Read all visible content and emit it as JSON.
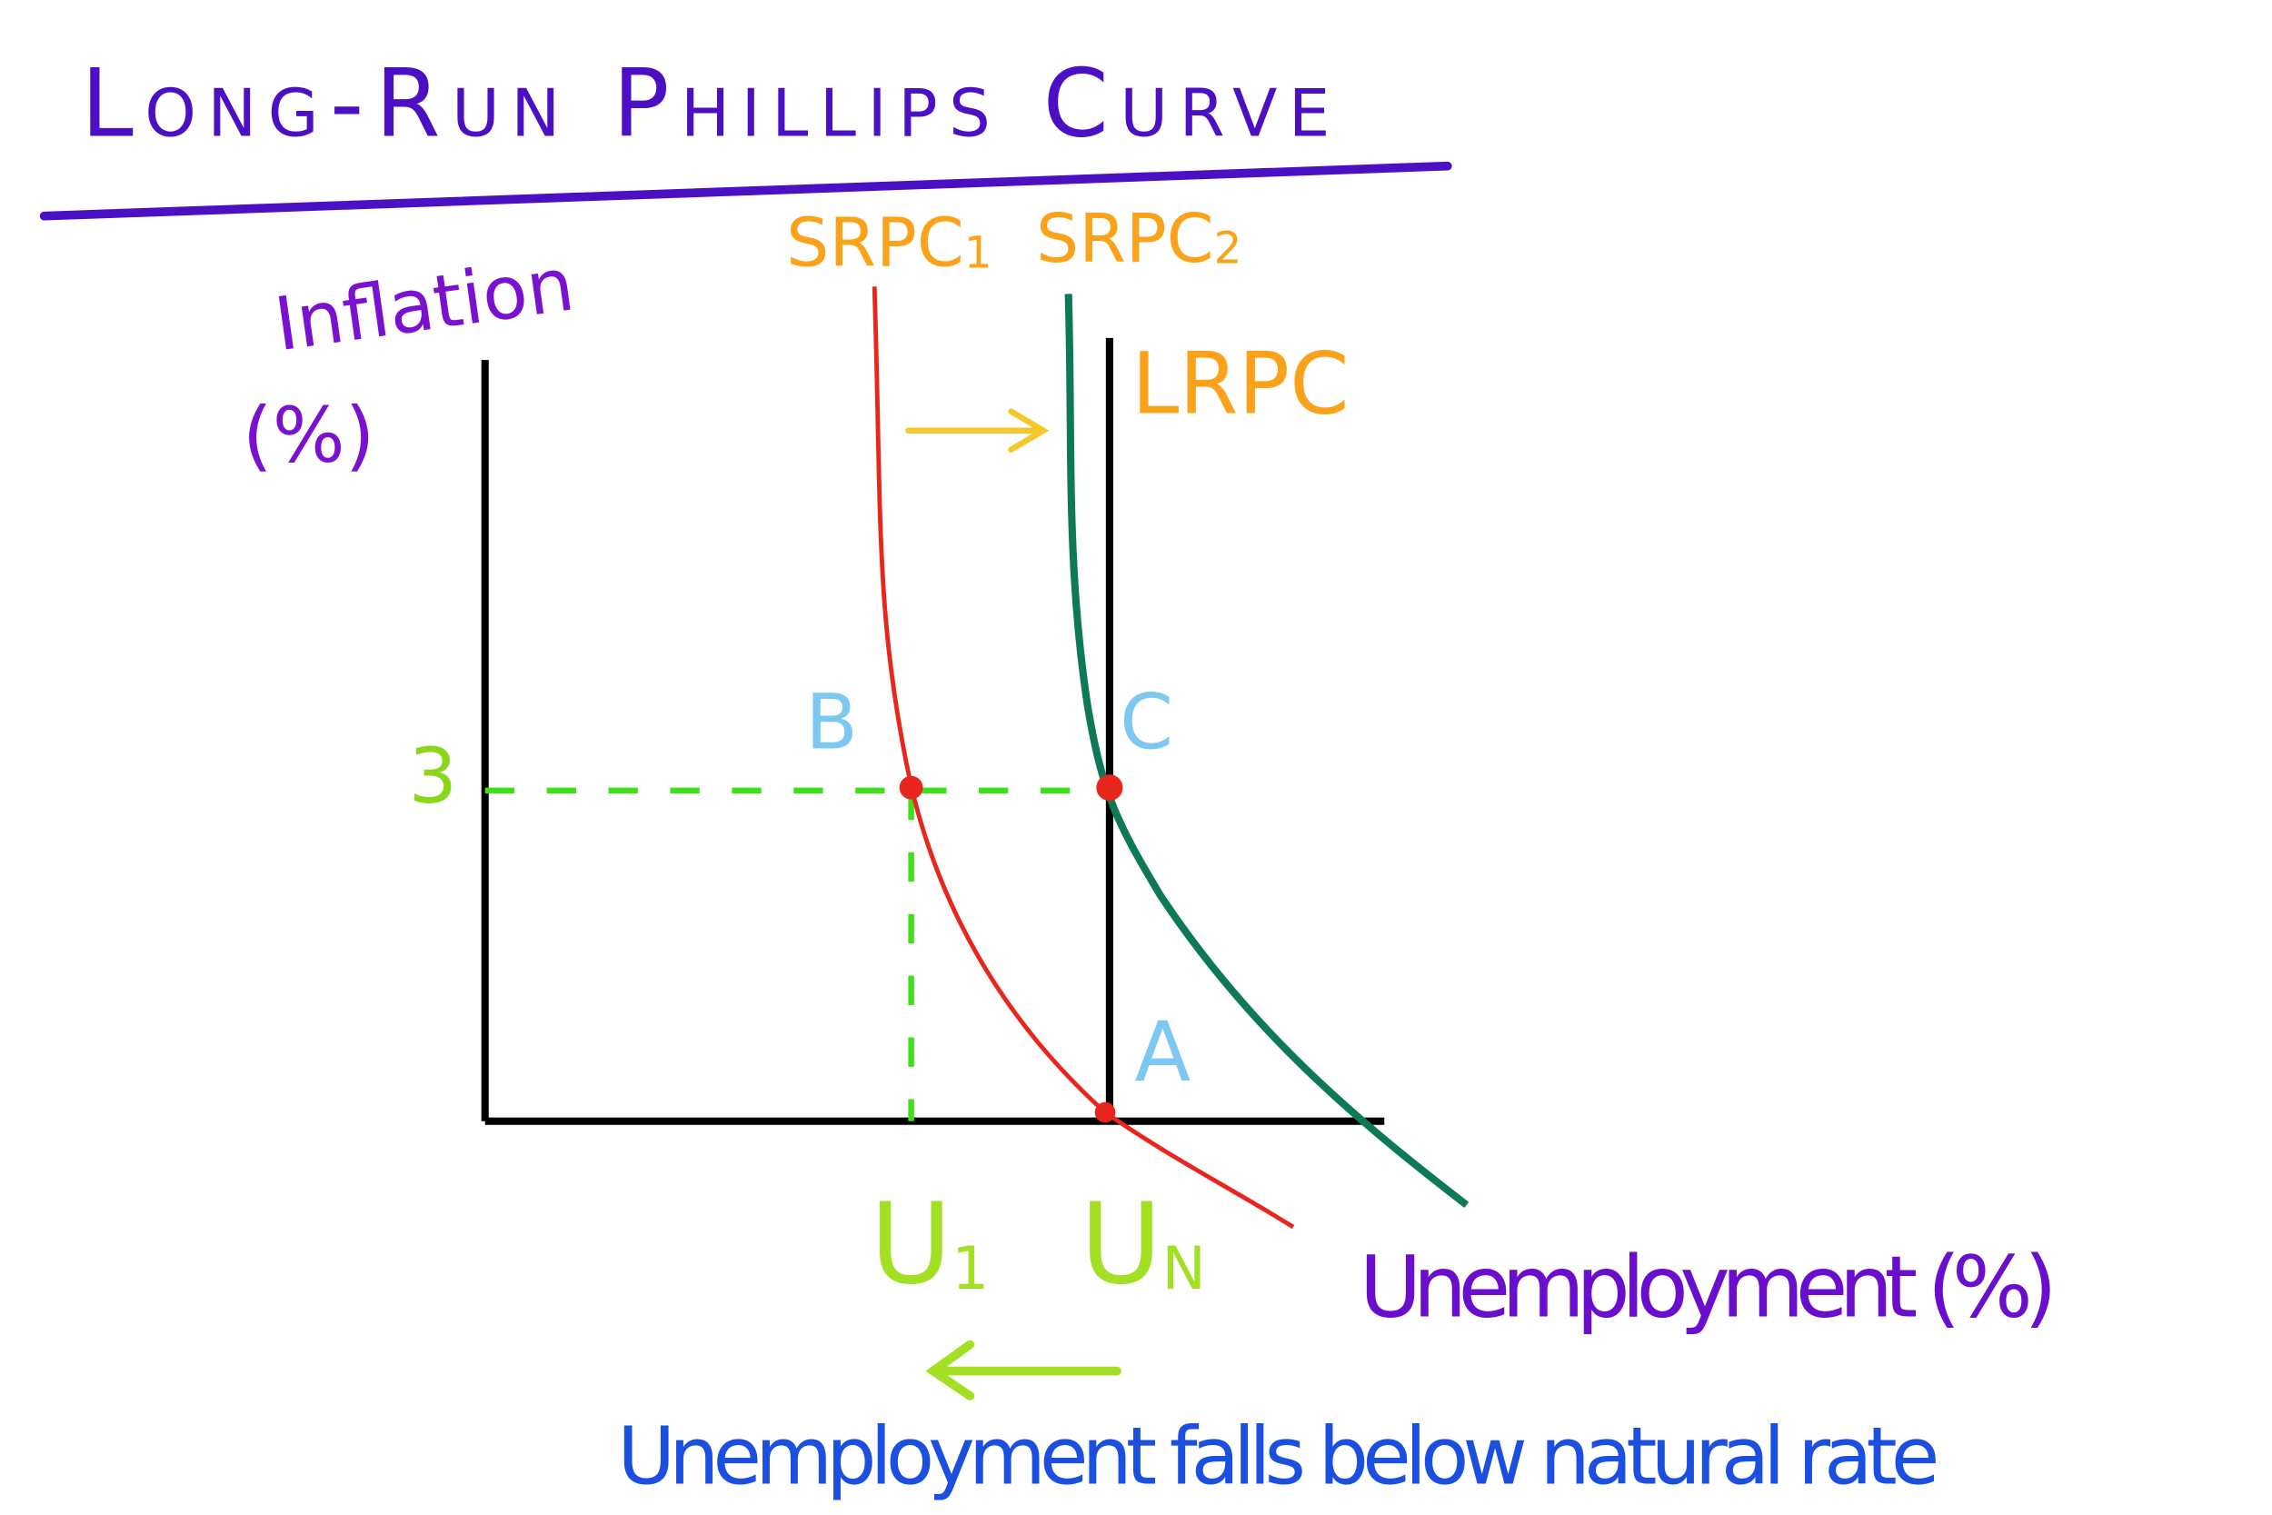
{
  "title": "Long-Run Phillips Curve",
  "axes": {
    "y_label": "Inflation",
    "y_unit": "(%)",
    "x_label": "Unemployment (%)"
  },
  "curves": {
    "srpc1": {
      "text": "SRPC",
      "sub": "1"
    },
    "srpc2": {
      "text": "SRPC",
      "sub": "2"
    },
    "lrpc": "LRPC"
  },
  "y_tick": "3",
  "points": {
    "b": "B",
    "c": "C",
    "a": "A"
  },
  "x_ticks": {
    "u1": {
      "text": "U",
      "sub": "1"
    },
    "un": {
      "text": "U",
      "sub": "N"
    }
  },
  "annotation": "Unemployment falls below natural rate"
}
